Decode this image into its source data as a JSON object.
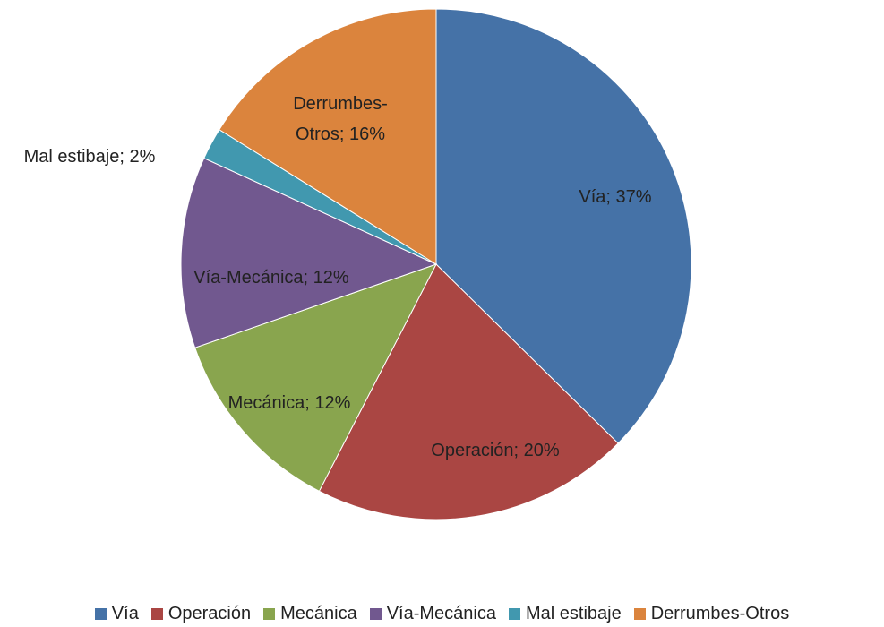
{
  "chart_data": {
    "type": "pie",
    "categories": [
      "Vía",
      "Operación",
      "Mecánica",
      "Vía-Mecánica",
      "Mal estibaje",
      "Derrumbes-Otros"
    ],
    "values": [
      37,
      20,
      12,
      12,
      2,
      16
    ],
    "value_labels": [
      "Vía; 37%",
      "Operación; 20%",
      "Mecánica; 12%",
      "Vía-Mecánica; 12%",
      "Mal estibaje; 2%",
      "Derrumbes-Otros; 16%"
    ],
    "colors": [
      "#4572a7",
      "#aa4643",
      "#89a54e",
      "#71588f",
      "#4198af",
      "#db843d"
    ],
    "legend": "bottom"
  }
}
